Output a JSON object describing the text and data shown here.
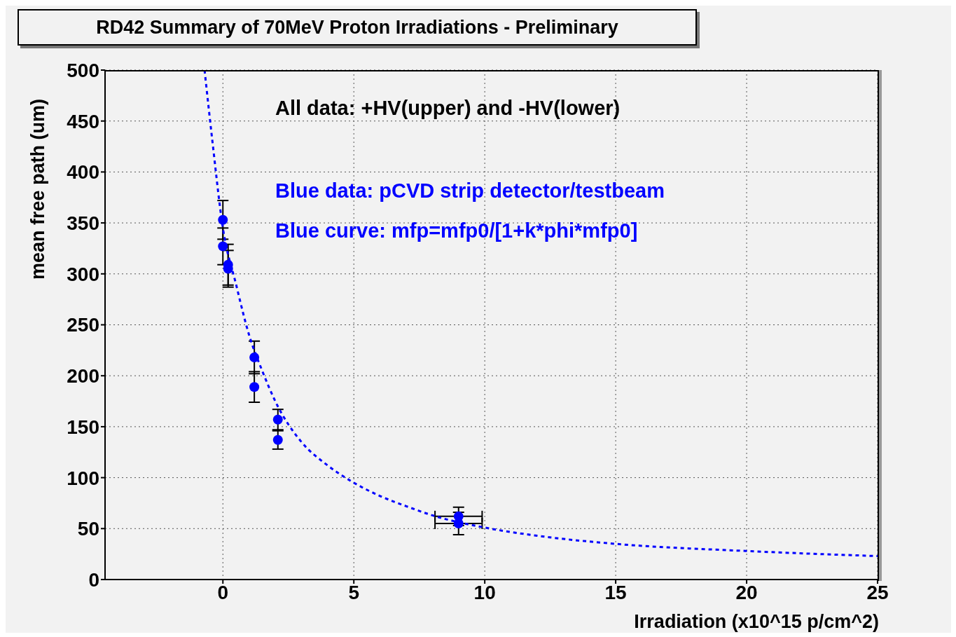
{
  "chart_data": {
    "type": "scatter",
    "title": "RD42 Summary of 70MeV Proton Irradiations - Preliminary",
    "xlabel": "Irradiation (x10^15 p/cm^2)",
    "ylabel": "mean free path (um)",
    "annotations": [
      "All data: +HV(upper) and -HV(lower)",
      "Blue data: pCVD strip detector/testbeam",
      "Blue curve: mfp=mfp0/[1+k*phi*mfp0]"
    ],
    "x": [
      0,
      0,
      0.2,
      0.2,
      1.2,
      1.2,
      2.1,
      2.1,
      9,
      9
    ],
    "series": [
      {
        "color": "#0000ff",
        "marker": "circle",
        "values": [
          353,
          327,
          309,
          305,
          218,
          189,
          157,
          137,
          62,
          55
        ],
        "errors": [
          19,
          18,
          20,
          18,
          16,
          15,
          10,
          9,
          9,
          11
        ],
        "xerrors": [
          null,
          null,
          null,
          null,
          null,
          null,
          null,
          null,
          0.9,
          0.9
        ]
      },
      {
        "type": "line",
        "color": "#0000ff",
        "marker": "none",
        "line_style": "dashed",
        "x": [
          -0.7,
          -0.4,
          0,
          0.5,
          1,
          1.5,
          2,
          3,
          4,
          5,
          6,
          7,
          8,
          10,
          12,
          15,
          20,
          25
        ],
        "values": [
          500,
          430,
          345,
          290,
          240,
          205,
          175,
          135,
          112,
          95,
          82,
          72,
          63,
          51,
          43,
          35,
          28,
          23
        ]
      }
    ],
    "xlim": [
      -4.5,
      25
    ],
    "xticks": [
      0,
      5,
      10,
      15,
      20,
      25
    ],
    "ylim": [
      0,
      500
    ],
    "yticks": [
      0,
      50,
      100,
      150,
      200,
      250,
      300,
      350,
      400,
      450,
      500
    ],
    "grid": true
  }
}
